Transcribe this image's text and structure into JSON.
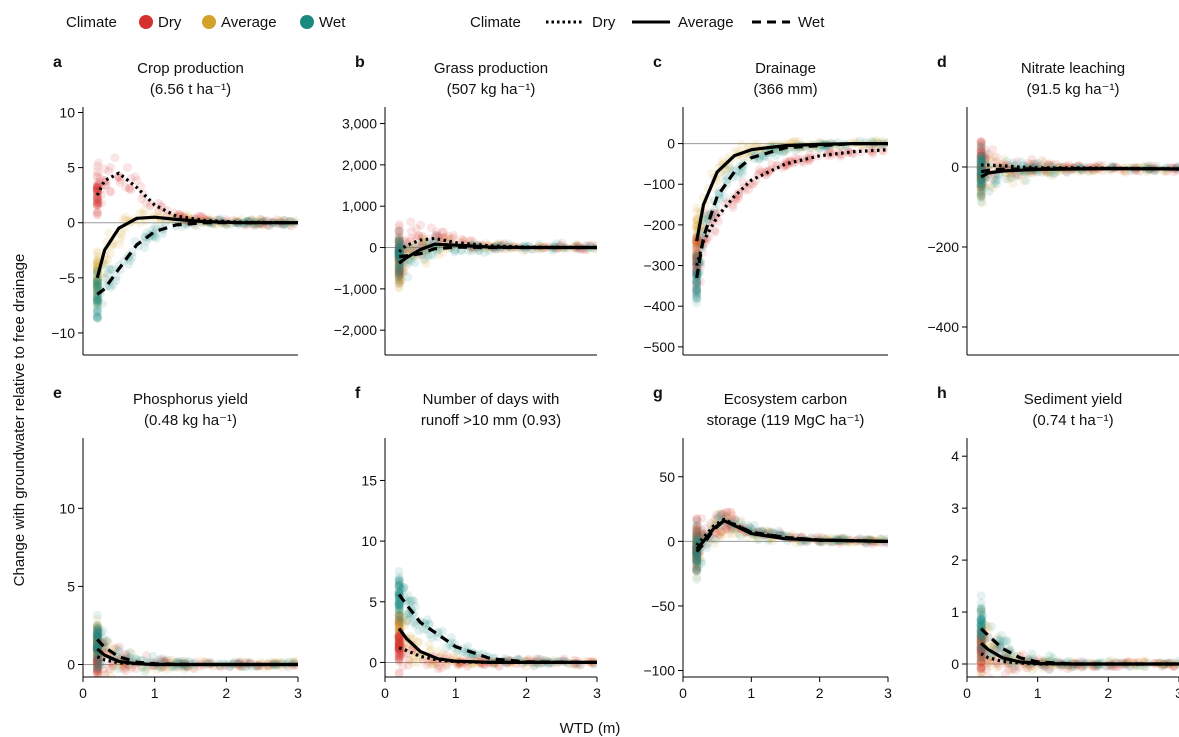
{
  "legend_points": {
    "title": "Climate",
    "items": [
      {
        "label": "Dry",
        "color": "#d62f2f"
      },
      {
        "label": "Average",
        "color": "#d4a12a"
      },
      {
        "label": "Wet",
        "color": "#1a8a80"
      }
    ]
  },
  "legend_lines": {
    "title": "Climate",
    "items": [
      {
        "label": "Dry",
        "dash": "dotted"
      },
      {
        "label": "Average",
        "dash": "solid"
      },
      {
        "label": "Wet",
        "dash": "dashed"
      }
    ]
  },
  "ylabel": "Change with groundwater relative to free drainage",
  "xlabel": "WTD (m)",
  "chart_data": [
    {
      "type": "scatter",
      "letter": "a",
      "title": "Crop production",
      "subtitle": "(6.56 t ha⁻¹)",
      "xlim": [
        0,
        3
      ],
      "ylim": [
        -12,
        10.5
      ],
      "yticks": [
        10,
        5,
        0,
        -5,
        -10
      ],
      "ytick_labels": [
        "10",
        "5",
        "0",
        "−5",
        "−10"
      ],
      "xticks": [],
      "xtick_labels": [],
      "series": [
        {
          "name": "Dry",
          "x": [
            0.2,
            0.3,
            0.5,
            0.75,
            1.0,
            1.3,
            1.7,
            2.2,
            3.0
          ],
          "y": [
            2.5,
            3.8,
            4.5,
            3.2,
            1.6,
            0.6,
            0.2,
            0.05,
            0.0
          ]
        },
        {
          "name": "Average",
          "x": [
            0.2,
            0.3,
            0.5,
            0.75,
            1.0,
            1.3,
            1.7,
            2.2,
            3.0
          ],
          "y": [
            -5.0,
            -2.5,
            -0.5,
            0.4,
            0.5,
            0.3,
            0.1,
            0.0,
            0.0
          ]
        },
        {
          "name": "Wet",
          "x": [
            0.2,
            0.3,
            0.5,
            0.75,
            1.0,
            1.3,
            1.7,
            2.2,
            3.0
          ],
          "y": [
            -6.5,
            -6.0,
            -4.2,
            -2.0,
            -0.8,
            -0.2,
            0.0,
            0.0,
            0.0
          ]
        }
      ]
    },
    {
      "type": "scatter",
      "letter": "b",
      "title": "Grass production",
      "subtitle": "(507 kg ha⁻¹)",
      "xlim": [
        0,
        3
      ],
      "ylim": [
        -2600,
        3400
      ],
      "yticks": [
        3000,
        2000,
        1000,
        0,
        -1000,
        -2000
      ],
      "ytick_labels": [
        "3,000",
        "2,000",
        "1,000",
        "0",
        "−1,000",
        "−2,000"
      ],
      "xticks": [],
      "xtick_labels": [],
      "series": [
        {
          "name": "Dry",
          "x": [
            0.2,
            0.3,
            0.5,
            0.7,
            1.0,
            1.5,
            2.0,
            3.0
          ],
          "y": [
            -100,
            50,
            180,
            220,
            120,
            40,
            10,
            0
          ]
        },
        {
          "name": "Average",
          "x": [
            0.2,
            0.3,
            0.5,
            0.7,
            1.0,
            1.5,
            2.0,
            3.0
          ],
          "y": [
            -380,
            -250,
            -50,
            80,
            60,
            10,
            0,
            0
          ]
        },
        {
          "name": "Wet",
          "x": [
            0.2,
            0.3,
            0.5,
            0.7,
            1.0,
            1.5,
            2.0,
            3.0
          ],
          "y": [
            -220,
            -200,
            -150,
            -30,
            10,
            0,
            0,
            0
          ]
        }
      ]
    },
    {
      "type": "scatter",
      "letter": "c",
      "title": "Drainage",
      "subtitle": "(366 mm)",
      "xlim": [
        0,
        3
      ],
      "ylim": [
        -520,
        90
      ],
      "yticks": [
        0,
        -100,
        -200,
        -300,
        -400,
        -500
      ],
      "ytick_labels": [
        "0",
        "−100",
        "−200",
        "−300",
        "−400",
        "−500"
      ],
      "xticks": [],
      "xtick_labels": [],
      "series": [
        {
          "name": "Dry",
          "x": [
            0.2,
            0.3,
            0.5,
            0.75,
            1.0,
            1.5,
            2.0,
            2.5,
            3.0
          ],
          "y": [
            -300,
            -240,
            -180,
            -130,
            -90,
            -50,
            -30,
            -20,
            -15
          ]
        },
        {
          "name": "Average",
          "x": [
            0.2,
            0.3,
            0.5,
            0.75,
            1.0,
            1.5,
            2.0,
            2.5,
            3.0
          ],
          "y": [
            -240,
            -150,
            -70,
            -30,
            -15,
            -5,
            -2,
            0,
            0
          ]
        },
        {
          "name": "Wet",
          "x": [
            0.2,
            0.3,
            0.5,
            0.75,
            1.0,
            1.5,
            2.0,
            2.5,
            3.0
          ],
          "y": [
            -330,
            -230,
            -130,
            -70,
            -35,
            -10,
            -5,
            0,
            0
          ]
        }
      ]
    },
    {
      "type": "scatter",
      "letter": "d",
      "title": "Nitrate leaching",
      "subtitle": "(91.5 kg ha⁻¹)",
      "xlim": [
        0,
        3
      ],
      "ylim": [
        -470,
        150
      ],
      "yticks": [
        0,
        -200,
        -400
      ],
      "ytick_labels": [
        "0",
        "−200",
        "−400"
      ],
      "xticks": [],
      "xtick_labels": [],
      "series": [
        {
          "name": "Dry",
          "x": [
            0.2,
            0.3,
            0.5,
            0.75,
            1.0,
            1.5,
            2.0,
            3.0
          ],
          "y": [
            5,
            5,
            3,
            0,
            -2,
            -2,
            -3,
            -5
          ]
        },
        {
          "name": "Average",
          "x": [
            0.2,
            0.3,
            0.5,
            0.75,
            1.0,
            1.5,
            2.0,
            3.0
          ],
          "y": [
            -25,
            -15,
            -10,
            -8,
            -6,
            -5,
            -4,
            -5
          ]
        },
        {
          "name": "Wet",
          "x": [
            0.2,
            0.3,
            0.5,
            0.75,
            1.0,
            1.5,
            2.0,
            3.0
          ],
          "y": [
            -12,
            -8,
            -6,
            -5,
            -4,
            -4,
            -4,
            -5
          ]
        }
      ]
    },
    {
      "type": "scatter",
      "letter": "e",
      "title": "Phosphorus yield",
      "subtitle": "(0.48 kg ha⁻¹)",
      "xlim": [
        0,
        3
      ],
      "ylim": [
        -0.8,
        14.5
      ],
      "yticks": [
        10,
        5,
        0
      ],
      "ytick_labels": [
        "10",
        "5",
        "0"
      ],
      "xticks": [
        0,
        1,
        2,
        3
      ],
      "xtick_labels": [
        "0",
        "1",
        "2",
        "3"
      ],
      "series": [
        {
          "name": "Dry",
          "x": [
            0.2,
            0.3,
            0.5,
            0.75,
            1.0,
            1.5,
            2.0,
            3.0
          ],
          "y": [
            0.5,
            0.3,
            0.1,
            0.05,
            0.0,
            0.0,
            0.0,
            0.0
          ]
        },
        {
          "name": "Average",
          "x": [
            0.2,
            0.3,
            0.5,
            0.75,
            1.0,
            1.5,
            2.0,
            3.0
          ],
          "y": [
            1.0,
            0.6,
            0.2,
            0.05,
            0.0,
            0.0,
            0.0,
            0.0
          ]
        },
        {
          "name": "Wet",
          "x": [
            0.2,
            0.3,
            0.5,
            0.75,
            1.0,
            1.5,
            2.0,
            3.0
          ],
          "y": [
            1.6,
            1.1,
            0.5,
            0.15,
            0.05,
            0.0,
            0.0,
            0.0
          ]
        }
      ]
    },
    {
      "type": "scatter",
      "letter": "f",
      "title": "Number of days with",
      "subtitle": "runoff >10 mm (0.93)",
      "xlim": [
        0,
        3
      ],
      "ylim": [
        -1.2,
        18.5
      ],
      "yticks": [
        15,
        10,
        5,
        0
      ],
      "ytick_labels": [
        "15",
        "10",
        "5",
        "0"
      ],
      "xticks": [
        0,
        1,
        2,
        3
      ],
      "xtick_labels": [
        "0",
        "1",
        "2",
        "3"
      ],
      "series": [
        {
          "name": "Dry",
          "x": [
            0.2,
            0.3,
            0.5,
            0.75,
            1.0,
            1.5,
            2.0,
            3.0
          ],
          "y": [
            1.2,
            1.0,
            0.5,
            0.2,
            0.05,
            0.0,
            0.0,
            0.0
          ]
        },
        {
          "name": "Average",
          "x": [
            0.2,
            0.3,
            0.5,
            0.75,
            1.0,
            1.5,
            2.0,
            3.0
          ],
          "y": [
            2.8,
            2.0,
            0.9,
            0.3,
            0.1,
            0.0,
            0.0,
            0.0
          ]
        },
        {
          "name": "Wet",
          "x": [
            0.2,
            0.3,
            0.5,
            0.75,
            1.0,
            1.5,
            2.0,
            3.0
          ],
          "y": [
            5.6,
            4.8,
            3.3,
            2.3,
            1.3,
            0.3,
            0.05,
            0.0
          ]
        }
      ]
    },
    {
      "type": "scatter",
      "letter": "g",
      "title": "Ecosystem carbon",
      "subtitle": "storage (119 MgC ha⁻¹)",
      "xlim": [
        0,
        3
      ],
      "ylim": [
        -105,
        80
      ],
      "yticks": [
        50,
        0,
        -50,
        -100
      ],
      "ytick_labels": [
        "50",
        "0",
        "−50",
        "−100"
      ],
      "xticks": [
        0,
        1,
        2,
        3
      ],
      "xtick_labels": [
        "0",
        "1",
        "2",
        "3"
      ],
      "series": [
        {
          "name": "Dry",
          "x": [
            0.2,
            0.3,
            0.45,
            0.6,
            0.8,
            1.0,
            1.5,
            2.0,
            3.0
          ],
          "y": [
            -3,
            3,
            12,
            17,
            12,
            7,
            3,
            1,
            0
          ]
        },
        {
          "name": "Average",
          "x": [
            0.2,
            0.3,
            0.45,
            0.6,
            0.8,
            1.0,
            1.5,
            2.0,
            3.0
          ],
          "y": [
            -6,
            0,
            10,
            16,
            11,
            6,
            2,
            1,
            0
          ]
        },
        {
          "name": "Wet",
          "x": [
            0.2,
            0.3,
            0.45,
            0.6,
            0.8,
            1.0,
            1.5,
            2.0,
            3.0
          ],
          "y": [
            -8,
            -2,
            9,
            16,
            12,
            7,
            3,
            1,
            0
          ]
        }
      ]
    },
    {
      "type": "scatter",
      "letter": "h",
      "title": "Sediment yield",
      "subtitle": "(0.74 t ha⁻¹)",
      "xlim": [
        0,
        3
      ],
      "ylim": [
        -0.25,
        4.35
      ],
      "yticks": [
        4,
        3,
        2,
        1,
        0
      ],
      "ytick_labels": [
        "4",
        "3",
        "2",
        "1",
        "0"
      ],
      "xticks": [
        0,
        1,
        2,
        3
      ],
      "xtick_labels": [
        "0",
        "1",
        "2",
        "3"
      ],
      "series": [
        {
          "name": "Dry",
          "x": [
            0.2,
            0.3,
            0.5,
            0.75,
            1.0,
            1.5,
            2.0,
            3.0
          ],
          "y": [
            0.2,
            0.12,
            0.05,
            0.02,
            0.0,
            0.0,
            0.0,
            0.0
          ]
        },
        {
          "name": "Average",
          "x": [
            0.2,
            0.3,
            0.5,
            0.75,
            1.0,
            1.5,
            2.0,
            3.0
          ],
          "y": [
            0.4,
            0.28,
            0.12,
            0.04,
            0.01,
            0.0,
            0.0,
            0.0
          ]
        },
        {
          "name": "Wet",
          "x": [
            0.2,
            0.3,
            0.5,
            0.75,
            1.0,
            1.5,
            2.0,
            3.0
          ],
          "y": [
            0.68,
            0.55,
            0.3,
            0.12,
            0.04,
            0.0,
            0.0,
            0.0
          ]
        }
      ]
    }
  ]
}
